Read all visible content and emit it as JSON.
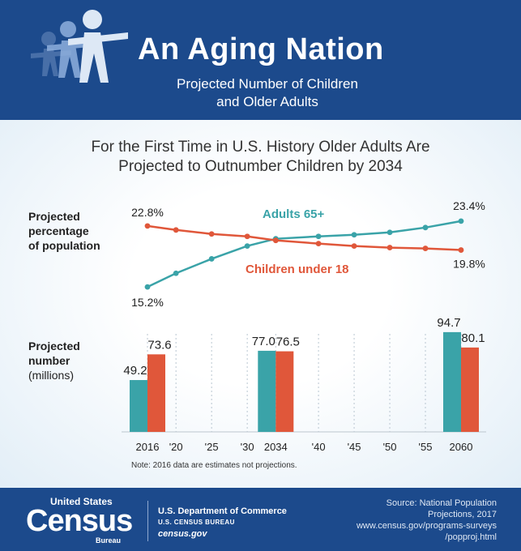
{
  "header": {
    "title": "An Aging Nation",
    "subtitle_line1": "Projected Number of Children",
    "subtitle_line2": "and Older Adults"
  },
  "headline": {
    "line1": "For the First Time in U.S. History Older Adults Are",
    "line2": "Projected to Outnumber Children by 2034"
  },
  "labels": {
    "pct_line1": "Projected",
    "pct_line2": "percentage",
    "pct_line3": "of population",
    "num_line1": "Projected",
    "num_line2": "number",
    "num_line3": "(millions)"
  },
  "note": "Note: 2016 data are estimates not projections.",
  "colors": {
    "header_bg": "#1c4a8c",
    "adults": "#3aa3a8",
    "children": "#e0573a"
  },
  "chart_data": [
    {
      "type": "line",
      "title": "",
      "ylabel": "Projected percentage of population",
      "x": [
        2016,
        2020,
        2025,
        2030,
        2034,
        2040,
        2045,
        2050,
        2055,
        2060
      ],
      "series": [
        {
          "name": "Adults 65+",
          "values": [
            15.2,
            16.9,
            18.7,
            20.3,
            21.2,
            21.5,
            21.7,
            22.0,
            22.6,
            23.4
          ]
        },
        {
          "name": "Children under 18",
          "values": [
            22.8,
            22.3,
            21.8,
            21.5,
            21.0,
            20.6,
            20.3,
            20.1,
            20.0,
            19.8
          ]
        }
      ],
      "data_labels": {
        "adults_start": "15.2%",
        "adults_end": "23.4%",
        "children_start": "22.8%",
        "children_end": "19.8%"
      },
      "ylim": [
        14,
        24.5
      ]
    },
    {
      "type": "bar",
      "title": "",
      "ylabel": "Projected number (millions)",
      "categories": [
        "2016",
        "2034",
        "2060"
      ],
      "series": [
        {
          "name": "Adults 65+",
          "values": [
            49.2,
            77.0,
            94.7
          ]
        },
        {
          "name": "Children under 18",
          "values": [
            73.6,
            76.5,
            80.1
          ]
        }
      ],
      "ylim": [
        0,
        100
      ],
      "x_tick_labels": [
        "2016",
        "'20",
        "'25",
        "'30",
        "2034",
        "'40",
        "'45",
        "'50",
        "'55",
        "2060"
      ]
    }
  ],
  "footer": {
    "census_us": "United States",
    "census_word": "Census",
    "census_bureau": "Bureau",
    "dept": "U.S. Department of Commerce",
    "bureau": "U.S. CENSUS BUREAU",
    "site": "census.gov",
    "source_line1": "Source: National Population",
    "source_line2": "Projections, 2017",
    "source_line3": "www.census.gov/programs-surveys",
    "source_line4": "/popproj.html"
  }
}
